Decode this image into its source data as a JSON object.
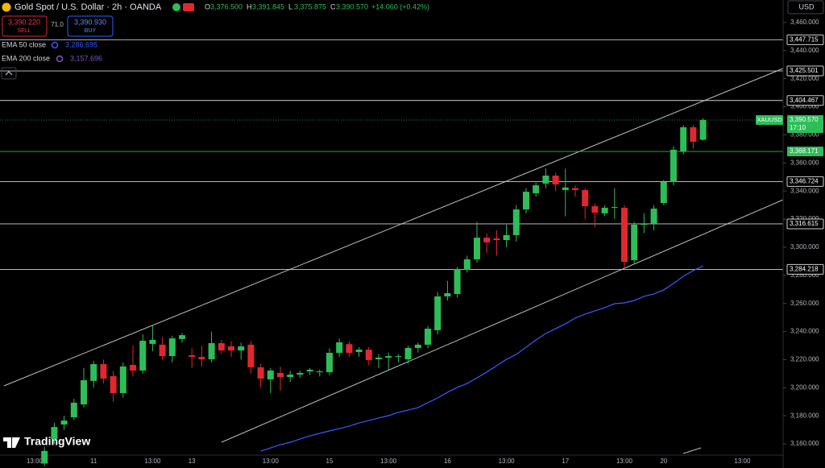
{
  "header": {
    "title": "Gold Spot / U.S. Dollar · 2h · OANDA",
    "ohlc": [
      {
        "key": "O",
        "value": "3,376.500"
      },
      {
        "key": "H",
        "value": "3,391.845"
      },
      {
        "key": "L",
        "value": "3,375.875"
      },
      {
        "key": "C",
        "value": "3,390.570"
      }
    ],
    "change": "+14.060 (+0.42%)",
    "sell": {
      "price": "3,390.220",
      "label": "SELL"
    },
    "spread": "71.0",
    "buy": {
      "price": "3,390.930",
      "label": "BUY"
    },
    "logo": "TradingView"
  },
  "chart_data": {
    "type": "candlestick",
    "symbol": "XAUUSD",
    "currency": "USD",
    "up_color": "#2ebd59",
    "down_color": "#e0282e",
    "categories": [
      "13:00",
      null,
      null,
      null,
      null,
      null,
      "11",
      null,
      null,
      null,
      null,
      null,
      "13:00",
      null,
      null,
      null,
      "13",
      null,
      null,
      null,
      null,
      null,
      null,
      null,
      "13:00",
      null,
      null,
      null,
      null,
      null,
      "15",
      null,
      null,
      null,
      null,
      null,
      "13:00",
      null,
      null,
      null,
      null,
      null,
      "16",
      null,
      null,
      null,
      null,
      null,
      "13:00",
      null,
      null,
      null,
      null,
      null,
      "17",
      null,
      null,
      null,
      null,
      null,
      "13:00",
      null,
      null,
      null,
      "20",
      null,
      null,
      null,
      null,
      null,
      null,
      null,
      "13:00"
    ],
    "candles": [
      null,
      [
        3146,
        3158,
        3144,
        3155
      ],
      [
        3163.4,
        3175,
        3160,
        3172
      ],
      [
        3173.8,
        3180,
        3170,
        3176.6
      ],
      [
        3178.9,
        3192,
        3177,
        3189.3
      ],
      [
        3188.1,
        3214,
        3186,
        3205.3
      ],
      [
        3204.8,
        3219,
        3200,
        3216.8
      ],
      [
        3216.8,
        3220,
        3203,
        3206.5
      ],
      [
        3208.2,
        3212,
        3190,
        3196.1
      ],
      [
        3196.1,
        3218,
        3193,
        3215.1
      ],
      [
        3216.2,
        3230,
        3208,
        3212.2
      ],
      [
        3212.2,
        3238,
        3210,
        3233.4
      ],
      [
        3231.2,
        3244,
        3226,
        3234
      ],
      [
        3230.6,
        3236,
        3220,
        3222.5
      ],
      [
        3222.5,
        3237,
        3218,
        3235.1
      ],
      [
        3234.6,
        3239,
        3232,
        3237.4
      ],
      [
        3223.1,
        3228,
        3214,
        3221.9
      ],
      [
        3221.9,
        3230,
        3215,
        3220.2
      ],
      [
        3220.2,
        3240,
        3218,
        3231.7
      ],
      [
        3231.7,
        3234,
        3224,
        3226.5
      ],
      [
        3229.4,
        3233,
        3222,
        3226.5
      ],
      [
        3226.5,
        3232,
        3220,
        3229.4
      ],
      [
        3230.6,
        3233,
        3210,
        3214.5
      ],
      [
        3214.5,
        3217,
        3200,
        3206.5
      ],
      [
        3205.9,
        3214,
        3196,
        3212.2
      ],
      [
        3210.5,
        3215,
        3198,
        3207.6
      ],
      [
        3207.6,
        3212,
        3204,
        3209.3
      ],
      [
        3209.3,
        3212,
        3207,
        3210.5
      ],
      [
        3211.6,
        3214,
        3209,
        3212.8
      ],
      [
        3211,
        3213,
        3208,
        3211.6
      ],
      [
        3211,
        3228,
        3209,
        3224.8
      ],
      [
        3224.8,
        3235,
        3222,
        3232.3
      ],
      [
        3231,
        3233,
        3222,
        3224.8
      ],
      [
        3225.4,
        3229,
        3222,
        3227.1
      ],
      [
        3227.1,
        3229,
        3216,
        3219.7
      ],
      [
        3220.2,
        3224,
        3214,
        3221.4
      ],
      [
        3221.4,
        3225,
        3212,
        3222.5
      ],
      [
        3221.9,
        3224,
        3218,
        3222.5
      ],
      [
        3220.2,
        3230,
        3217,
        3228.3
      ],
      [
        3228.3,
        3232,
        3225,
        3230.6
      ],
      [
        3230.6,
        3244,
        3228,
        3242
      ],
      [
        3240.9,
        3268,
        3238,
        3265
      ],
      [
        3265,
        3276,
        3262,
        3267.3
      ],
      [
        3266.7,
        3286,
        3264,
        3284.5
      ],
      [
        3283.9,
        3294,
        3282,
        3291.4
      ],
      [
        3291.4,
        3318,
        3289,
        3306.8
      ],
      [
        3306.8,
        3310,
        3296,
        3303.4
      ],
      [
        3306.3,
        3312,
        3294,
        3305.1
      ],
      [
        3305.1,
        3316,
        3300,
        3308.6
      ],
      [
        3308.6,
        3330,
        3304,
        3326.9
      ],
      [
        3326.9,
        3342,
        3324,
        3339.5
      ],
      [
        3338.4,
        3346,
        3336,
        3344.1
      ],
      [
        3345.3,
        3356,
        3342,
        3351
      ],
      [
        3351,
        3353,
        3340,
        3344.7
      ],
      [
        3340.7,
        3356,
        3322,
        3342.5
      ],
      [
        3342,
        3344,
        3336,
        3340.7
      ],
      [
        3340.7,
        3342,
        3320,
        3329.2
      ],
      [
        3329.2,
        3331,
        3314,
        3324.6
      ],
      [
        3324.1,
        3330,
        3322,
        3328.1
      ],
      [
        3328.1,
        3342,
        3320,
        3328.6
      ],
      [
        3328.1,
        3330,
        3285,
        3289.6
      ],
      [
        3290.8,
        3318,
        3288,
        3316
      ],
      [
        3316,
        3324,
        3310,
        3316.6
      ],
      [
        3316.6,
        3330,
        3312,
        3327.5
      ],
      [
        3331.5,
        3348,
        3330,
        3346.4
      ],
      [
        3346.4,
        3372,
        3344,
        3369.4
      ],
      [
        3368.2,
        3387,
        3366,
        3385.4
      ],
      [
        3385.4,
        3387,
        3370,
        3375.1
      ],
      [
        3376.5,
        3391.845,
        3375.875,
        3390.57
      ],
      null,
      null,
      null,
      null
    ],
    "ema_lines": [
      {
        "name": "EMA 50 close",
        "color": "#3d5afe",
        "value_label": "3,286.695",
        "values": [
          null,
          null,
          null,
          null,
          null,
          null,
          null,
          null,
          null,
          null,
          null,
          null,
          null,
          null,
          null,
          null,
          null,
          null,
          null,
          null,
          null,
          null,
          null,
          3154.8,
          3157.1,
          3159.4,
          3161.1,
          3163.5,
          3165.7,
          3167.5,
          3169.2,
          3170.9,
          3172.6,
          3174.9,
          3176.6,
          3178.4,
          3180.1,
          3182.4,
          3184.1,
          3185.8,
          3189.3,
          3192.7,
          3196.7,
          3200.2,
          3203.0,
          3207.0,
          3211.1,
          3215.6,
          3220.2,
          3223.7,
          3228.8,
          3234.0,
          3238.6,
          3242.0,
          3245.5,
          3249.5,
          3252.4,
          3254.7,
          3257.0,
          3259.8,
          3260.4,
          3262.1,
          3265.0,
          3266.7,
          3269.6,
          3274.2,
          3279.3,
          3283.3,
          3286.695,
          null,
          null,
          null,
          null
        ]
      },
      {
        "name": "EMA 200 close",
        "color": "#7e57c2",
        "value_label": "3,157.696"
      }
    ],
    "price_label": "3,390.570",
    "countdown": "17:10",
    "levels": [
      {
        "value": 3447.715,
        "label": "3,447.715"
      },
      {
        "value": 3425.501,
        "label": "3,425.501"
      },
      {
        "value": 3404.467,
        "label": "3,404.467"
      },
      {
        "value": 3368.171,
        "label": "3,368.171",
        "color": "#2ebd59"
      },
      {
        "value": 3346.724,
        "label": "3,346.724"
      },
      {
        "value": 3316.615,
        "label": "3,316.615"
      },
      {
        "value": 3284.218,
        "label": "3,284.218"
      }
    ],
    "ylim": [
      3152,
      3476
    ],
    "yticks": [
      {
        "value": 3160,
        "label": "3,160.000"
      },
      {
        "value": 3180,
        "label": "3,180.000"
      },
      {
        "value": 3200,
        "label": "3,200.000"
      },
      {
        "value": 3220,
        "label": "3,220.000"
      },
      {
        "value": 3240,
        "label": "3,240.000"
      },
      {
        "value": 3260,
        "label": "3,260.000"
      },
      {
        "value": 3280,
        "label": "3,280.000"
      },
      {
        "value": 3300,
        "label": "3,300.000"
      },
      {
        "value": 3320,
        "label": "3,320.000"
      },
      {
        "value": 3340,
        "label": "3,340.000"
      },
      {
        "value": 3360,
        "label": "3,360.000"
      },
      {
        "value": 3380,
        "label": "3,380.000"
      },
      {
        "value": 3400,
        "label": "3,400.000"
      },
      {
        "value": 3420,
        "label": "3,420.000"
      },
      {
        "value": 3440,
        "label": "3,440.000"
      },
      {
        "value": 3460,
        "label": "3,460.000"
      }
    ]
  }
}
